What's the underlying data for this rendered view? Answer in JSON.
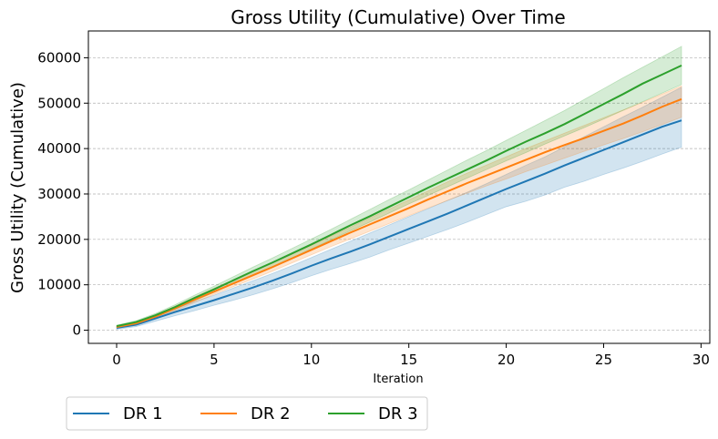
{
  "chart_data": {
    "type": "line",
    "title": "Gross Utility (Cumulative) Over Time",
    "xlabel": "Iteration",
    "ylabel": "Gross Utility (Cumulative)",
    "xlim": [
      -1.45,
      30.45
    ],
    "ylim": [
      -2900,
      65900
    ],
    "x_ticks": [
      0,
      5,
      10,
      15,
      20,
      25,
      30
    ],
    "y_ticks": [
      0,
      10000,
      20000,
      30000,
      40000,
      50000,
      60000
    ],
    "grid": "horizontal dashed",
    "legend_position": "bottom-left, outside",
    "x": [
      0,
      1,
      2,
      3,
      4,
      5,
      6,
      7,
      8,
      9,
      10,
      11,
      12,
      13,
      14,
      15,
      16,
      17,
      18,
      19,
      20,
      21,
      22,
      23,
      24,
      25,
      26,
      27,
      28,
      29
    ],
    "series": [
      {
        "name": "DR 1",
        "color": "#1f77b4",
        "values": [
          500,
          1200,
          2600,
          4000,
          5300,
          6600,
          8000,
          9400,
          10900,
          12500,
          14200,
          15800,
          17300,
          18900,
          20600,
          22300,
          24000,
          25700,
          27500,
          29300,
          31100,
          32800,
          34500,
          36300,
          38000,
          39700,
          41400,
          43100,
          44800,
          46200
        ],
        "lower": [
          200,
          800,
          2000,
          3200,
          4300,
          5500,
          6600,
          7800,
          9100,
          10500,
          12000,
          13400,
          14700,
          16100,
          17700,
          19200,
          20700,
          22200,
          23800,
          25500,
          27200,
          28400,
          29800,
          31500,
          32800,
          34300,
          35700,
          37200,
          38800,
          40300
        ],
        "upper": [
          800,
          1600,
          3200,
          4800,
          6300,
          7700,
          9300,
          10900,
          12500,
          14200,
          16000,
          17800,
          19600,
          21400,
          23200,
          25000,
          26800,
          28600,
          30400,
          32300,
          34300,
          36300,
          38200,
          40400,
          42600,
          44800,
          47000,
          49100,
          51300,
          53500
        ]
      },
      {
        "name": "DR 2",
        "color": "#ff7f0e",
        "values": [
          700,
          1500,
          3000,
          4800,
          6700,
          8500,
          10300,
          12100,
          13900,
          15800,
          17700,
          19600,
          21500,
          23300,
          25100,
          26900,
          28800,
          30600,
          32400,
          34100,
          35800,
          37500,
          39200,
          40800,
          42300,
          43900,
          45500,
          47300,
          49200,
          50900
        ],
        "lower": [
          500,
          1200,
          2600,
          4300,
          6100,
          7900,
          9600,
          11300,
          13000,
          14800,
          16600,
          18400,
          20100,
          21800,
          23500,
          25200,
          26900,
          28600,
          30200,
          31800,
          33300,
          34900,
          36400,
          37900,
          39400,
          40800,
          42200,
          43700,
          45300,
          46900
        ],
        "upper": [
          900,
          1800,
          3400,
          5300,
          7300,
          9200,
          11100,
          13000,
          14900,
          16800,
          18700,
          20700,
          22700,
          24700,
          26700,
          28700,
          30700,
          32700,
          34600,
          36400,
          38200,
          40000,
          41700,
          43400,
          45100,
          46800,
          48500,
          50200,
          52000,
          53800
        ]
      },
      {
        "name": "DR 3",
        "color": "#2ca02c",
        "values": [
          900,
          1800,
          3300,
          5100,
          7100,
          9000,
          11000,
          13000,
          14900,
          16900,
          18900,
          21000,
          23100,
          25100,
          27200,
          29300,
          31400,
          33400,
          35400,
          37400,
          39500,
          41500,
          43400,
          45400,
          47600,
          49800,
          52000,
          54300,
          56300,
          58300
        ],
        "lower": [
          700,
          1500,
          2900,
          4600,
          6500,
          8300,
          10200,
          12100,
          14000,
          15900,
          17900,
          19900,
          21900,
          23800,
          25800,
          27800,
          29700,
          31600,
          33500,
          35400,
          37300,
          39100,
          41000,
          42800,
          44600,
          46500,
          48400,
          50300,
          52200,
          54100
        ],
        "upper": [
          1100,
          2100,
          3700,
          5600,
          7700,
          9700,
          11800,
          13900,
          15900,
          18000,
          20100,
          22200,
          24400,
          26600,
          28800,
          30900,
          33100,
          35300,
          37500,
          39600,
          41800,
          44000,
          46200,
          48400,
          50800,
          53200,
          55600,
          57900,
          60200,
          62500
        ]
      }
    ]
  }
}
